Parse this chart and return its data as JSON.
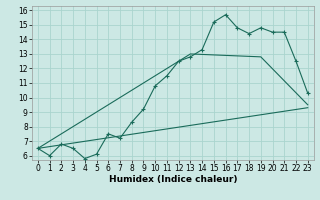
{
  "xlabel": "Humidex (Indice chaleur)",
  "bg_color": "#cce8e4",
  "grid_color": "#aad4ce",
  "line_color": "#1a6b5a",
  "xlim": [
    -0.5,
    23.5
  ],
  "ylim": [
    5.7,
    16.3
  ],
  "xticks": [
    0,
    1,
    2,
    3,
    4,
    5,
    6,
    7,
    8,
    9,
    10,
    11,
    12,
    13,
    14,
    15,
    16,
    17,
    18,
    19,
    20,
    21,
    22,
    23
  ],
  "yticks": [
    6,
    7,
    8,
    9,
    10,
    11,
    12,
    13,
    14,
    15,
    16
  ],
  "curve1_x": [
    0,
    1,
    2,
    3,
    4,
    5,
    6,
    7,
    8,
    9,
    10,
    11,
    12,
    13,
    14,
    15,
    16,
    17,
    18,
    19,
    20,
    21,
    22,
    23
  ],
  "curve1_y": [
    6.5,
    6.0,
    6.8,
    6.5,
    5.8,
    6.1,
    7.5,
    7.2,
    8.3,
    9.2,
    10.8,
    11.5,
    12.5,
    12.8,
    13.3,
    15.2,
    15.7,
    14.8,
    14.4,
    14.8,
    14.5,
    14.5,
    12.5,
    10.3
  ],
  "curve2_x": [
    0,
    13,
    19,
    23
  ],
  "curve2_y": [
    6.5,
    13.0,
    12.8,
    9.5
  ],
  "curve3_x": [
    0,
    23
  ],
  "curve3_y": [
    6.5,
    9.3
  ],
  "xlabel_fontsize": 6.5,
  "tick_fontsize": 5.5
}
